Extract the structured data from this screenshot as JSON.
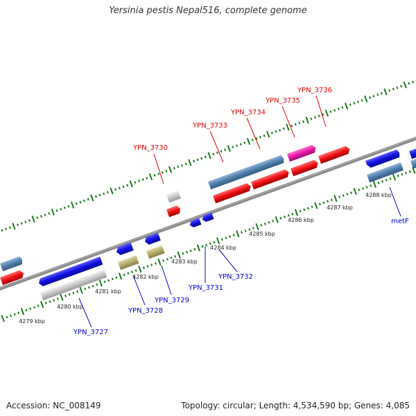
{
  "title": "Yersinia pestis Nepal516, complete genome",
  "footer": {
    "accession_label": "Accession:",
    "accession_value": "NC_008149",
    "topology_label": "Topology:",
    "topology_value": "circular",
    "length_label": "Length:",
    "length_value": "4,534,590 bp",
    "genes_label": "Genes:",
    "genes_value": "4,085"
  },
  "colors": {
    "backbone": "#888888",
    "tick": "#1a7a1a",
    "forward_label": "#e00000",
    "reverse_label": "#0000cc",
    "blue": "#1010dd",
    "steelblue": "#4d7fae",
    "red": "#ee1111",
    "magenta": "#e61aa8",
    "grey": "#c8c8c8",
    "khaki": "#b6ad6b"
  },
  "scale_labels": [
    "4279 kbp",
    "4280 kbp",
    "4281 kbp",
    "4282 kbp",
    "4283 kbp",
    "4284 kbp",
    "4285 kbp",
    "4286 kbp",
    "4287 kbp",
    "4288 kbp"
  ],
  "gene_labels": {
    "forward": [
      "YPN_3730",
      "YPN_3733",
      "YPN_3734",
      "YPN_3735",
      "YPN_3736"
    ],
    "reverse": [
      "YPN_3727",
      "YPN_3728",
      "YPN_3729",
      "YPN_3731",
      "YPN_3732",
      "metF"
    ]
  }
}
